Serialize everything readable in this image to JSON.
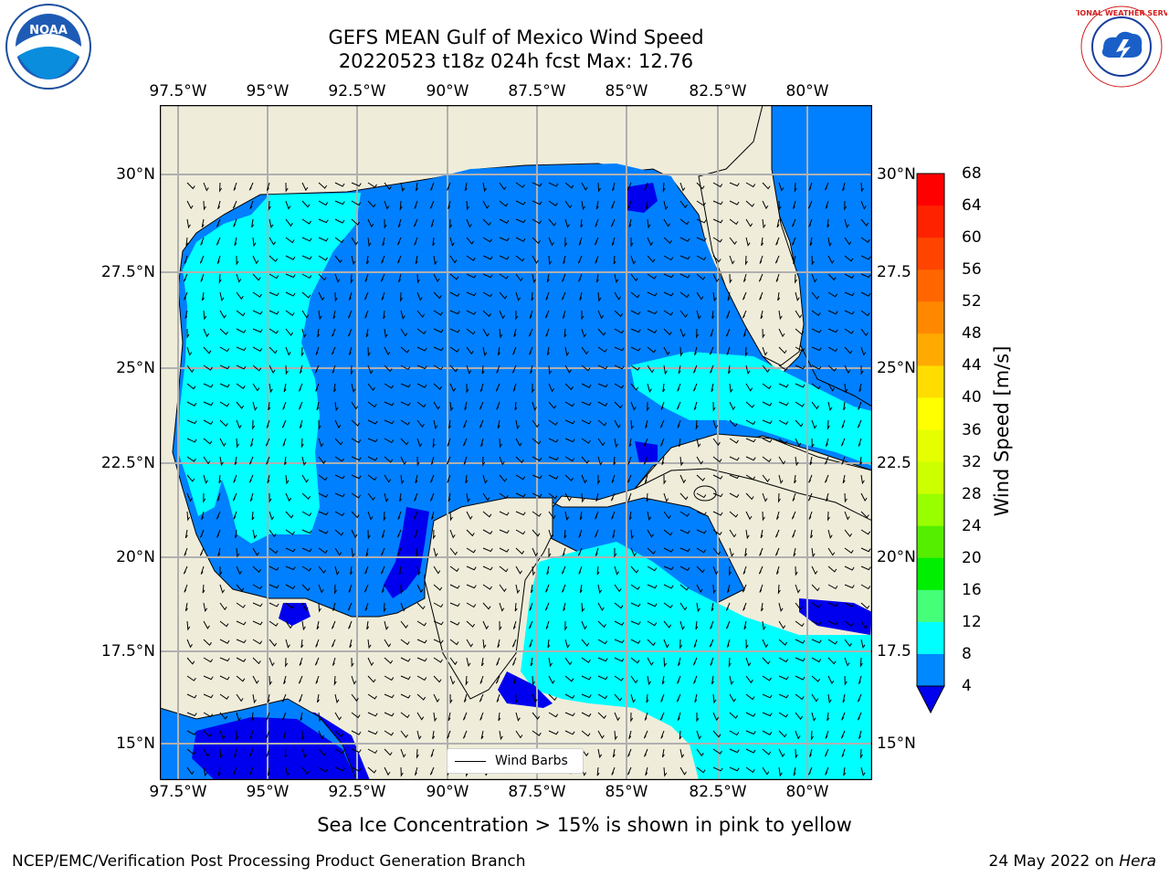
{
  "title": {
    "line1": "GEFS MEAN Gulf of Mexico Wind Speed",
    "line2": "20220523 t18z 024h fcst   Max: 12.76"
  },
  "axes": {
    "lon_ticks": [
      "97.5°W",
      "95°W",
      "92.5°W",
      "90°W",
      "87.5°W",
      "85°W",
      "82.5°W",
      "80°W"
    ],
    "lat_ticks": [
      "30°N",
      "27.5°N",
      "25°N",
      "22.5°N",
      "20°N",
      "17.5°N",
      "15°N"
    ],
    "lat_ticks_right": [
      "30°N",
      "27.5",
      "25°N",
      "22.5",
      "20°N",
      "17.5",
      "15°N"
    ]
  },
  "colorbar": {
    "label": "Wind Speed [m/s]",
    "ticks": [
      "68",
      "64",
      "60",
      "56",
      "52",
      "48",
      "44",
      "40",
      "36",
      "32",
      "28",
      "24",
      "20",
      "16",
      "12",
      "8",
      "4"
    ],
    "colors": [
      "#ff0000",
      "#ff2200",
      "#ff4400",
      "#ff6600",
      "#ff8800",
      "#ffaa00",
      "#ffdd00",
      "#ffff00",
      "#e6ff00",
      "#ccff00",
      "#99ff00",
      "#55ee00",
      "#00ee00",
      "#44ff77",
      "#99ffee",
      "#55ffff",
      "#00ffff",
      "#0088ff",
      "#0000ee"
    ]
  },
  "legend": {
    "label": "Wind Barbs"
  },
  "subtitle": "Sea Ice Concentration > 15% is shown in pink to yellow",
  "footer": {
    "left": "NCEP/EMC/Verification Post Processing Product Generation Branch",
    "right_prefix": "24 May 2022 on ",
    "right_italic": "Hera"
  },
  "logos": {
    "noaa": "NOAA",
    "nws": "NATIONAL WEATHER SERVICE"
  },
  "map_colors": {
    "land": "#efedda",
    "ocean4": "#0080ff",
    "ocean8": "#00ffff",
    "ocean0": "#0000ee",
    "grid": "#b0b0b0"
  }
}
